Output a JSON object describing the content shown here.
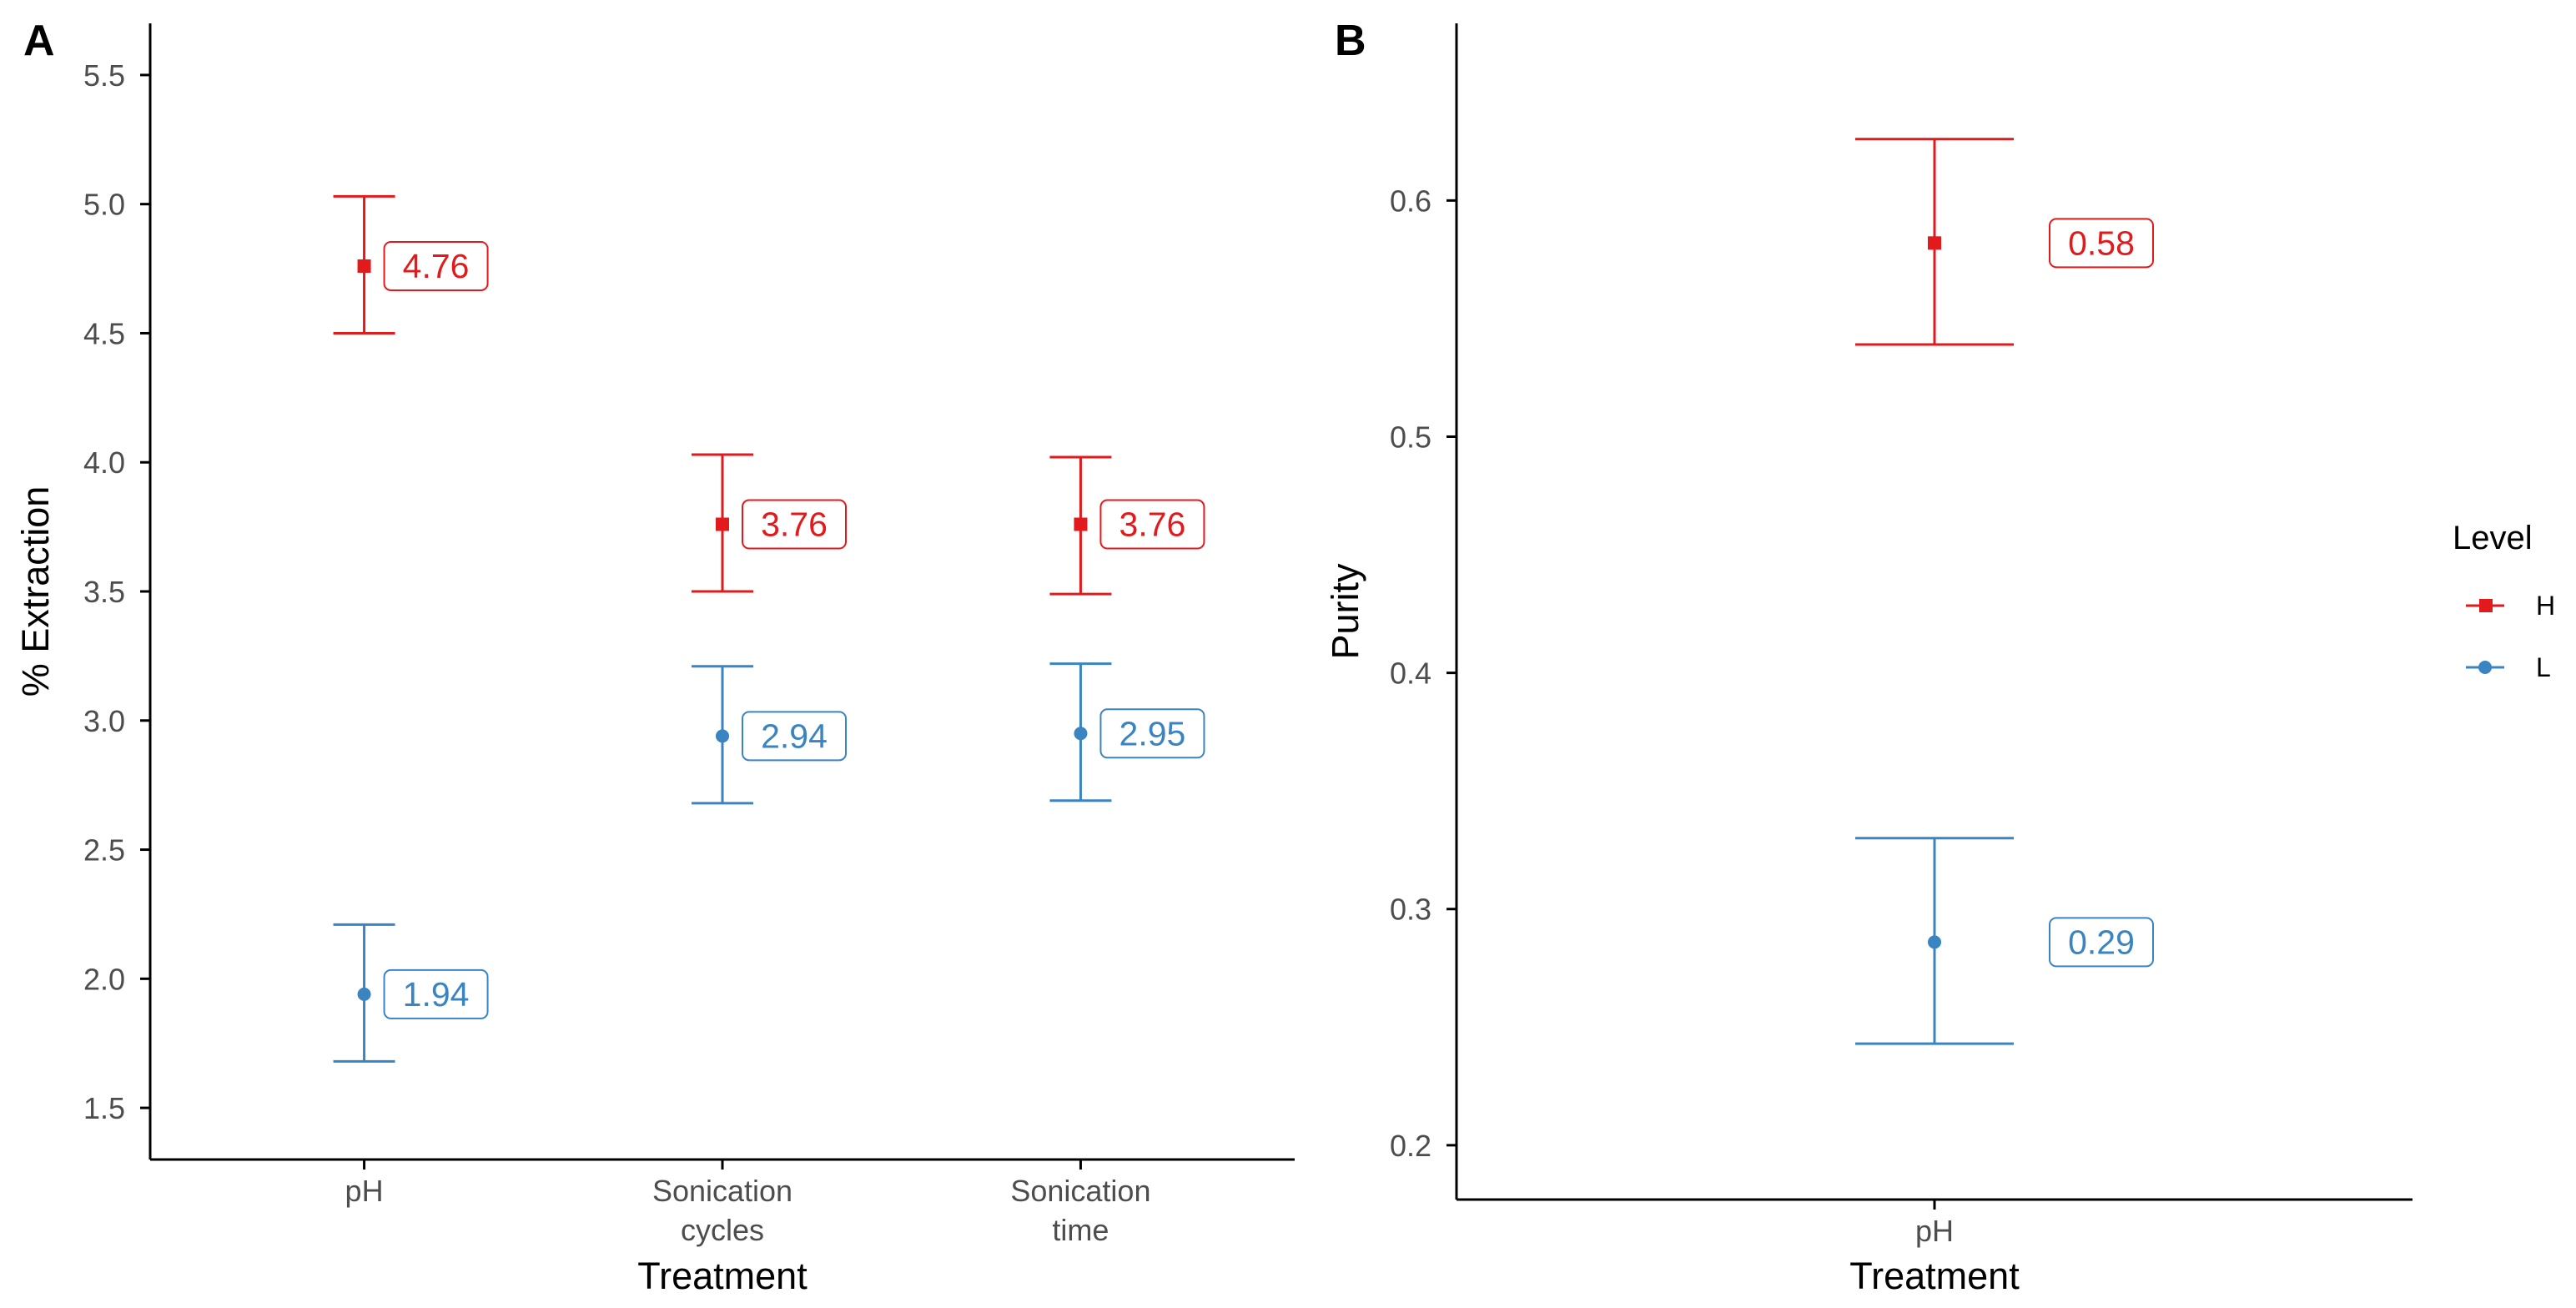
{
  "colors": {
    "H": "#e31a1c",
    "L": "#3a84c1",
    "axis": "#000000",
    "tick_text": "#4d4d4d"
  },
  "legend": {
    "title": "Level",
    "items": [
      {
        "key": "H",
        "label": "H",
        "shape": "square",
        "color": "#e31a1c"
      },
      {
        "key": "L",
        "label": "L",
        "shape": "circle",
        "color": "#3a84c1"
      }
    ]
  },
  "chart_data": [
    {
      "panel": "A",
      "type": "scatter",
      "subtype": "point-with-error-bars",
      "xlabel": "Treatment",
      "ylabel": "% Extraction",
      "categories": [
        "pH",
        "Sonication\ncycles",
        "Sonication\ntime"
      ],
      "ylim": [
        1.3,
        5.7
      ],
      "yticks": [
        1.5,
        2.0,
        2.5,
        3.0,
        3.5,
        4.0,
        4.5,
        5.0,
        5.5
      ],
      "ytick_labels": [
        "1.5",
        "2.0",
        "2.5",
        "3.0",
        "3.5",
        "4.0",
        "4.5",
        "5.0",
        "5.5"
      ],
      "series": [
        {
          "name": "H",
          "values": [
            4.76,
            3.76,
            3.76
          ],
          "lower": [
            4.5,
            3.5,
            3.49
          ],
          "upper": [
            5.03,
            4.03,
            4.02
          ],
          "labels": [
            "4.76",
            "3.76",
            "3.76"
          ]
        },
        {
          "name": "L",
          "values": [
            1.94,
            2.94,
            2.95
          ],
          "lower": [
            1.68,
            2.68,
            2.69
          ],
          "upper": [
            2.21,
            3.21,
            3.22
          ],
          "labels": [
            "1.94",
            "2.94",
            "2.95"
          ]
        }
      ]
    },
    {
      "panel": "B",
      "type": "scatter",
      "subtype": "point-with-error-bars",
      "xlabel": "Treatment",
      "ylabel": "Purity",
      "categories": [
        "pH"
      ],
      "ylim": [
        0.177,
        0.675
      ],
      "yticks": [
        0.2,
        0.3,
        0.4,
        0.5,
        0.6
      ],
      "ytick_labels": [
        "0.2",
        "0.3",
        "0.4",
        "0.5",
        "0.6"
      ],
      "series": [
        {
          "name": "H",
          "values": [
            0.582
          ],
          "lower": [
            0.539
          ],
          "upper": [
            0.626
          ],
          "labels": [
            "0.58"
          ]
        },
        {
          "name": "L",
          "values": [
            0.286
          ],
          "lower": [
            0.243
          ],
          "upper": [
            0.33
          ],
          "labels": [
            "0.29"
          ]
        }
      ]
    }
  ]
}
